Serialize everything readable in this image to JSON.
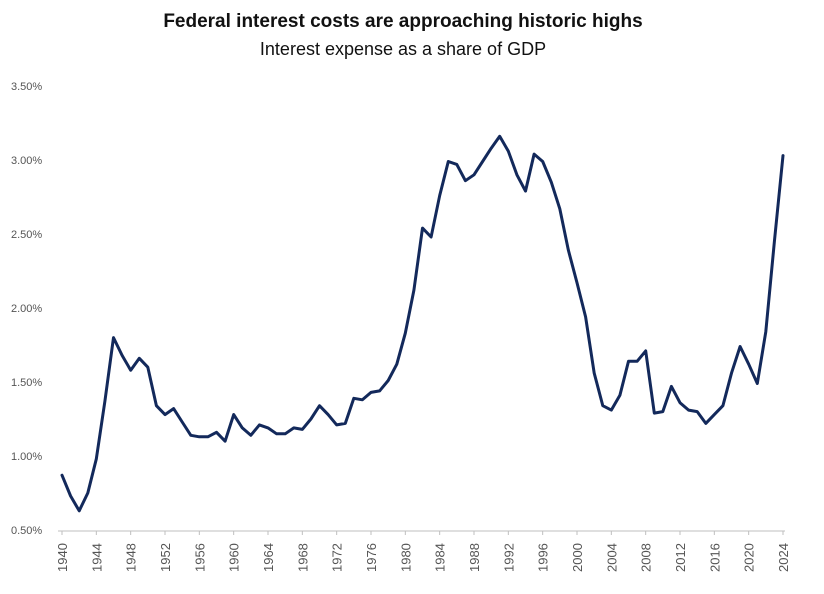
{
  "chart_data": {
    "type": "line",
    "title": "Federal interest costs are approaching historic highs",
    "subtitle": "Interest expense as a share of GDP",
    "xlabel": "",
    "ylabel": "",
    "ylim": [
      0.5,
      3.5
    ],
    "yticks": [
      "0.50%",
      "1.00%",
      "1.50%",
      "2.00%",
      "2.50%",
      "3.00%",
      "3.50%"
    ],
    "xlim": [
      1940,
      2024
    ],
    "xticks": [
      "1940",
      "1944",
      "1948",
      "1952",
      "1956",
      "1960",
      "1964",
      "1968",
      "1972",
      "1976",
      "1980",
      "1984",
      "1988",
      "1992",
      "1996",
      "2000",
      "2004",
      "2008",
      "2012",
      "2016",
      "2020",
      "2024"
    ],
    "grid": false,
    "line_color": "#13295b",
    "series": [
      {
        "name": "Interest expense as a share of GDP",
        "x": [
          1940,
          1941,
          1942,
          1943,
          1944,
          1945,
          1946,
          1947,
          1948,
          1949,
          1950,
          1951,
          1952,
          1953,
          1954,
          1955,
          1956,
          1957,
          1958,
          1959,
          1960,
          1961,
          1962,
          1963,
          1964,
          1965,
          1966,
          1967,
          1968,
          1969,
          1970,
          1971,
          1972,
          1973,
          1974,
          1975,
          1976,
          1977,
          1978,
          1979,
          1980,
          1981,
          1982,
          1983,
          1984,
          1985,
          1986,
          1987,
          1988,
          1989,
          1990,
          1991,
          1992,
          1993,
          1994,
          1995,
          1996,
          1997,
          1998,
          1999,
          2000,
          2001,
          2002,
          2003,
          2004,
          2005,
          2006,
          2007,
          2008,
          2009,
          2010,
          2011,
          2012,
          2013,
          2014,
          2015,
          2016,
          2017,
          2018,
          2019,
          2020,
          2021,
          2022,
          2023,
          2024
        ],
        "values": [
          0.87,
          0.73,
          0.63,
          0.75,
          0.98,
          1.37,
          1.8,
          1.68,
          1.58,
          1.66,
          1.6,
          1.34,
          1.28,
          1.32,
          1.23,
          1.14,
          1.13,
          1.13,
          1.16,
          1.1,
          1.28,
          1.19,
          1.14,
          1.21,
          1.19,
          1.15,
          1.15,
          1.19,
          1.18,
          1.25,
          1.34,
          1.28,
          1.21,
          1.22,
          1.39,
          1.38,
          1.43,
          1.44,
          1.51,
          1.62,
          1.83,
          2.12,
          2.54,
          2.48,
          2.76,
          2.99,
          2.97,
          2.86,
          2.9,
          2.99,
          3.08,
          3.16,
          3.06,
          2.9,
          2.79,
          3.04,
          2.99,
          2.85,
          2.67,
          2.39,
          2.17,
          1.94,
          1.56,
          1.34,
          1.31,
          1.41,
          1.64,
          1.64,
          1.71,
          1.29,
          1.3,
          1.47,
          1.36,
          1.31,
          1.3,
          1.22,
          1.28,
          1.34,
          1.56,
          1.74,
          1.62,
          1.49,
          1.84,
          2.45,
          3.03
        ]
      }
    ]
  }
}
